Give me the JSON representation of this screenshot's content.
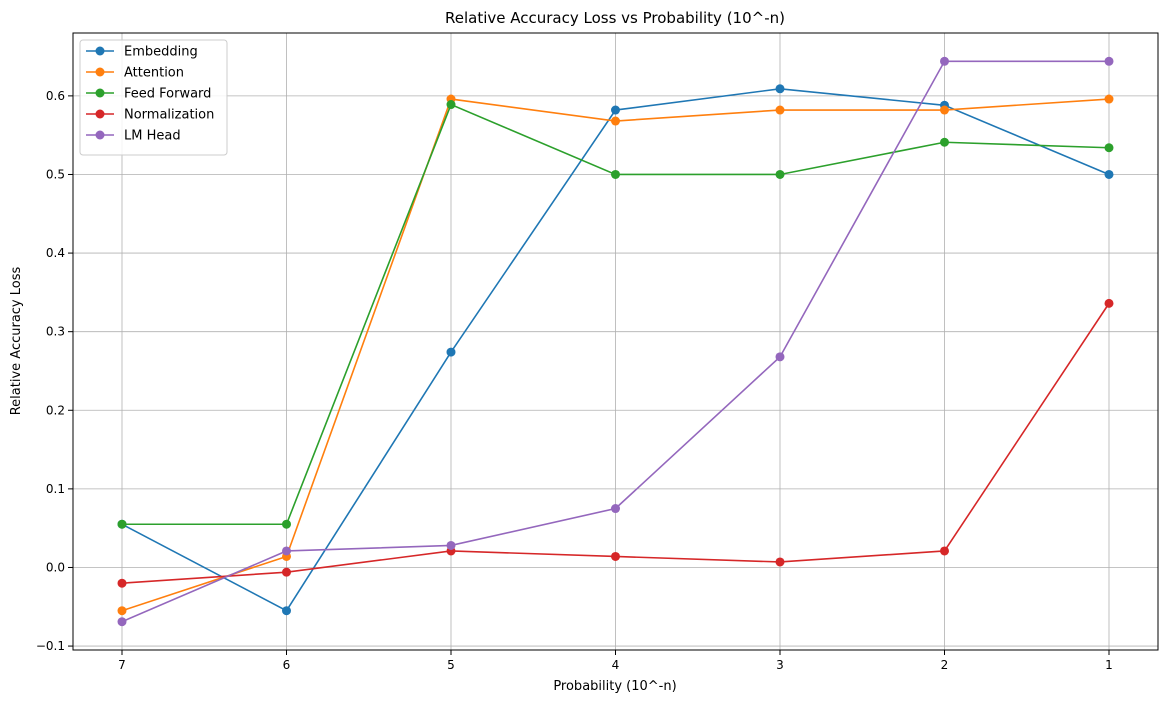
{
  "chart_data": {
    "type": "line",
    "title": "Relative Accuracy Loss vs Probability (10^-n)",
    "xlabel": "Probability (10^-n)",
    "ylabel": "Relative Accuracy Loss",
    "categories": [
      "7",
      "6",
      "5",
      "4",
      "3",
      "2",
      "1"
    ],
    "ylim": [
      -0.105,
      0.68
    ],
    "yticks": [
      -0.1,
      0.0,
      0.1,
      0.2,
      0.3,
      0.4,
      0.5,
      0.6
    ],
    "ytick_labels": [
      "−0.1",
      "0.0",
      "0.1",
      "0.2",
      "0.3",
      "0.4",
      "0.5",
      "0.6"
    ],
    "grid": true,
    "legend": "top-left",
    "series": [
      {
        "name": "Embedding",
        "color": "#1f77b4",
        "values": [
          0.055,
          -0.055,
          0.274,
          0.582,
          0.609,
          0.588,
          0.5
        ]
      },
      {
        "name": "Attention",
        "color": "#ff7f0e",
        "values": [
          -0.055,
          0.014,
          0.596,
          0.568,
          0.582,
          0.582,
          0.596
        ]
      },
      {
        "name": "Feed Forward",
        "color": "#2ca02c",
        "values": [
          0.055,
          0.055,
          0.589,
          0.5,
          0.5,
          0.541,
          0.534
        ]
      },
      {
        "name": "Normalization",
        "color": "#d62728",
        "values": [
          -0.02,
          -0.006,
          0.021,
          0.014,
          0.007,
          0.021,
          0.336
        ]
      },
      {
        "name": "LM Head",
        "color": "#9467bd",
        "values": [
          -0.069,
          0.021,
          0.028,
          0.075,
          0.268,
          0.644,
          0.644
        ]
      }
    ]
  }
}
